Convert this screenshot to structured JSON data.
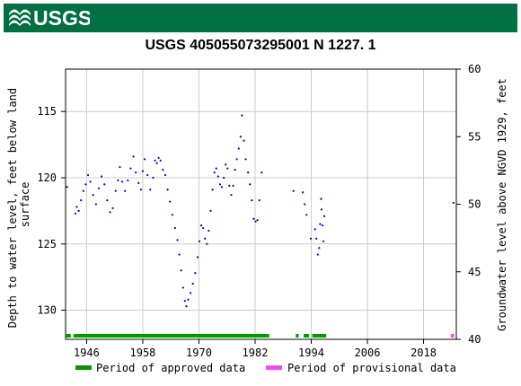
{
  "header": {
    "brand": "USGS",
    "title": "USGS 405055073295001 N  1227. 1"
  },
  "colors": {
    "banner": "#006f41",
    "data": "#0000cc",
    "approved": "#009900",
    "provisional": "#ff44ff",
    "grid": "#cccccc"
  },
  "chart_data": {
    "type": "scatter",
    "title": "USGS 405055073295001 N  1227. 1",
    "xlabel": "",
    "ylabel_left": "Depth to water level, feet below land surface",
    "ylabel_right": "Groundwater level above NGVD 1929, feet",
    "xlim": [
      1941.5,
      2025
    ],
    "ylim_left": [
      132.2,
      111.8
    ],
    "ylim_right": [
      40,
      60
    ],
    "x_ticks": [
      1946,
      1958,
      1970,
      1982,
      1994,
      2006,
      2018
    ],
    "y_ticks_left": [
      115,
      120,
      125,
      130
    ],
    "y_ticks_right": [
      40,
      45,
      50,
      55,
      60
    ],
    "grid": true,
    "legend_position": "bottom",
    "legend": [
      "Period of approved data",
      "Period of provisional data"
    ],
    "series": [
      {
        "points": [
          [
            1941.8,
            120.7
          ],
          [
            1943.6,
            122.7
          ],
          [
            1943.9,
            122.2
          ],
          [
            1944.3,
            122.5
          ],
          [
            1944.8,
            121.7
          ],
          [
            1945.3,
            121.0
          ],
          [
            1945.8,
            120.5
          ],
          [
            1946.3,
            119.8
          ],
          [
            1946.8,
            120.3
          ],
          [
            1947.4,
            121.3
          ],
          [
            1948.0,
            122.0
          ],
          [
            1948.6,
            120.8
          ],
          [
            1949.2,
            119.9
          ],
          [
            1949.8,
            120.5
          ],
          [
            1950.4,
            121.7
          ],
          [
            1951.0,
            122.6
          ],
          [
            1951.6,
            122.3
          ],
          [
            1952.2,
            121.0
          ],
          [
            1952.7,
            120.2
          ],
          [
            1953.1,
            119.2
          ],
          [
            1953.6,
            120.3
          ],
          [
            1954.2,
            121.0
          ],
          [
            1954.8,
            120.2
          ],
          [
            1955.4,
            119.3
          ],
          [
            1956.0,
            118.4
          ],
          [
            1956.5,
            119.6
          ],
          [
            1957.1,
            120.4
          ],
          [
            1957.6,
            120.9
          ],
          [
            1958.0,
            119.5
          ],
          [
            1958.4,
            118.6
          ],
          [
            1959.0,
            119.8
          ],
          [
            1959.6,
            120.9
          ],
          [
            1960.2,
            120.0
          ],
          [
            1960.6,
            118.7
          ],
          [
            1961.0,
            118.9
          ],
          [
            1961.4,
            118.5
          ],
          [
            1961.8,
            118.7
          ],
          [
            1962.3,
            119.4
          ],
          [
            1962.8,
            119.8
          ],
          [
            1963.3,
            120.9
          ],
          [
            1963.8,
            121.8
          ],
          [
            1964.3,
            122.8
          ],
          [
            1964.9,
            123.8
          ],
          [
            1965.4,
            124.7
          ],
          [
            1965.8,
            125.8
          ],
          [
            1966.2,
            127.0
          ],
          [
            1966.6,
            128.3
          ],
          [
            1967.0,
            129.3
          ],
          [
            1967.3,
            129.7
          ],
          [
            1967.7,
            129.2
          ],
          [
            1968.2,
            128.7
          ],
          [
            1968.7,
            128.0
          ],
          [
            1969.2,
            127.2
          ],
          [
            1969.7,
            126.0
          ],
          [
            1970.1,
            124.8
          ],
          [
            1970.5,
            123.6
          ],
          [
            1970.9,
            123.8
          ],
          [
            1971.3,
            124.6
          ],
          [
            1971.7,
            125.0
          ],
          [
            1972.1,
            124.0
          ],
          [
            1972.5,
            122.5
          ],
          [
            1972.9,
            120.9
          ],
          [
            1973.3,
            119.6
          ],
          [
            1973.7,
            119.3
          ],
          [
            1974.1,
            119.9
          ],
          [
            1974.5,
            120.5
          ],
          [
            1974.9,
            120.7
          ],
          [
            1975.3,
            120.0
          ],
          [
            1975.7,
            119.0
          ],
          [
            1976.1,
            119.3
          ],
          [
            1976.5,
            120.6
          ],
          [
            1976.9,
            121.3
          ],
          [
            1977.3,
            120.6
          ],
          [
            1977.7,
            119.4
          ],
          [
            1978.1,
            118.6
          ],
          [
            1978.5,
            117.8
          ],
          [
            1978.9,
            116.9
          ],
          [
            1979.2,
            115.3
          ],
          [
            1979.6,
            117.2
          ],
          [
            1980.0,
            118.6
          ],
          [
            1980.5,
            119.6
          ],
          [
            1980.9,
            120.5
          ],
          [
            1981.3,
            121.7
          ],
          [
            1981.7,
            123.1
          ],
          [
            1982.1,
            123.3
          ],
          [
            1982.5,
            123.2
          ],
          [
            1982.9,
            121.7
          ],
          [
            1983.4,
            119.6
          ],
          [
            1990.2,
            121.0
          ],
          [
            1992.2,
            121.1
          ],
          [
            1992.6,
            122.0
          ],
          [
            1993.0,
            122.8
          ],
          [
            1993.9,
            124.6
          ],
          [
            1994.8,
            123.9
          ],
          [
            1995.1,
            124.6
          ],
          [
            1995.4,
            125.8
          ],
          [
            1995.7,
            125.3
          ],
          [
            1995.9,
            123.5
          ],
          [
            1996.1,
            121.6
          ],
          [
            1996.2,
            122.4
          ],
          [
            1996.4,
            123.6
          ],
          [
            1996.6,
            124.8
          ],
          [
            1996.8,
            122.9
          ],
          [
            2024.4,
            121.9
          ]
        ]
      }
    ],
    "periods": {
      "approved": [
        [
          1941.5,
          1942.6
        ],
        [
          1943.2,
          1985.0
        ],
        [
          1990.7,
          1991.3
        ],
        [
          1992.4,
          1993.5
        ],
        [
          1994.2,
          1997.2
        ]
      ],
      "provisional": [
        [
          2023.8,
          2024.5
        ]
      ]
    }
  }
}
